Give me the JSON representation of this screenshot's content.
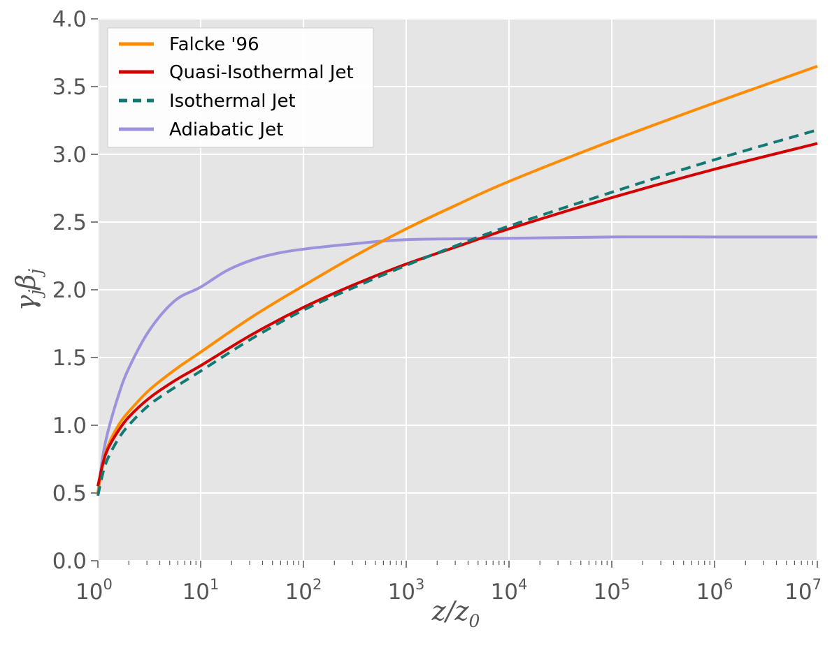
{
  "chart_data": {
    "type": "line",
    "title": "",
    "xlabel": {
      "base": "z/z",
      "sub": "0"
    },
    "ylabel": {
      "base": "γ",
      "sub1": "j",
      "mid": "β",
      "sub2": "j"
    },
    "xscale": "log",
    "xlim_exponents": [
      0,
      7
    ],
    "ylim": [
      0.0,
      4.0
    ],
    "grid": true,
    "legend_position": "top-left",
    "xticks": [
      {
        "base": "10",
        "exp": "0"
      },
      {
        "base": "10",
        "exp": "1"
      },
      {
        "base": "10",
        "exp": "2"
      },
      {
        "base": "10",
        "exp": "3"
      },
      {
        "base": "10",
        "exp": "4"
      },
      {
        "base": "10",
        "exp": "5"
      },
      {
        "base": "10",
        "exp": "6"
      },
      {
        "base": "10",
        "exp": "7"
      }
    ],
    "yticks": [
      "0.0",
      "0.5",
      "1.0",
      "1.5",
      "2.0",
      "2.5",
      "3.0",
      "3.5",
      "4.0"
    ],
    "series": [
      {
        "name": "Falcke '96",
        "color": "#ff8c00",
        "style": "solid",
        "log10_z": [
          0,
          0.05,
          0.1,
          0.2,
          0.3,
          0.5,
          0.75,
          1,
          1.5,
          2,
          2.5,
          3,
          3.5,
          4,
          5,
          6,
          7
        ],
        "values": [
          0.5,
          0.72,
          0.85,
          1.0,
          1.1,
          1.26,
          1.41,
          1.54,
          1.8,
          2.03,
          2.25,
          2.45,
          2.63,
          2.8,
          3.1,
          3.38,
          3.65
        ]
      },
      {
        "name": "Quasi-Isothermal Jet",
        "color": "#d40000",
        "style": "solid",
        "log10_z": [
          0,
          0.05,
          0.1,
          0.2,
          0.3,
          0.5,
          0.75,
          1,
          1.5,
          2,
          2.5,
          3,
          3.5,
          4,
          5,
          6,
          7
        ],
        "values": [
          0.55,
          0.72,
          0.83,
          0.96,
          1.06,
          1.2,
          1.33,
          1.44,
          1.67,
          1.87,
          2.04,
          2.19,
          2.32,
          2.45,
          2.68,
          2.89,
          3.08
        ]
      },
      {
        "name": "Isothermal Jet",
        "color": "#127a72",
        "style": "dashed",
        "log10_z": [
          0,
          0.05,
          0.1,
          0.2,
          0.3,
          0.5,
          0.75,
          1,
          1.5,
          2,
          2.5,
          3,
          3.5,
          4,
          5,
          6,
          7
        ],
        "values": [
          0.48,
          0.65,
          0.76,
          0.9,
          1.0,
          1.15,
          1.28,
          1.4,
          1.64,
          1.85,
          2.02,
          2.18,
          2.33,
          2.47,
          2.72,
          2.96,
          3.18
        ]
      },
      {
        "name": "Adiabatic Jet",
        "color": "#9b93db",
        "style": "solid",
        "log10_z": [
          0,
          0.05,
          0.1,
          0.2,
          0.3,
          0.5,
          0.75,
          1,
          1.25,
          1.5,
          1.75,
          2,
          2.5,
          3,
          4,
          5,
          6,
          7
        ],
        "values": [
          0.5,
          0.78,
          0.96,
          1.22,
          1.42,
          1.7,
          1.92,
          2.02,
          2.14,
          2.22,
          2.27,
          2.3,
          2.34,
          2.37,
          2.38,
          2.39,
          2.39,
          2.39
        ]
      }
    ]
  }
}
